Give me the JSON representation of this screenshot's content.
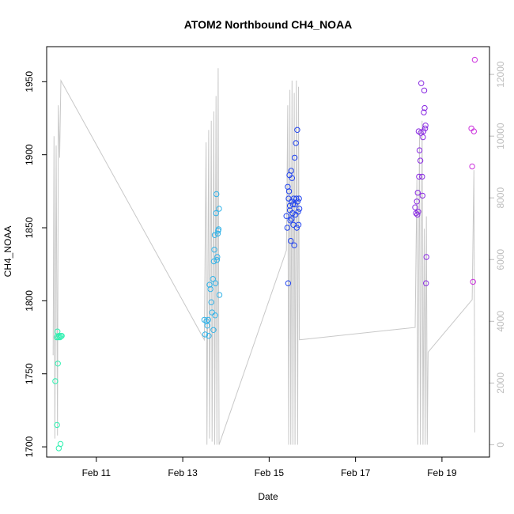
{
  "chart_data": {
    "type": "scatter",
    "title": "ATOM2 Northbound CH4_NOAA",
    "xlabel": "Date",
    "ylabel": "CH4_NOAA",
    "x_ticks": [
      "Feb 11",
      "Feb 13",
      "Feb 15",
      "Feb 17",
      "Feb 19"
    ],
    "x_tick_days": [
      11,
      13,
      15,
      17,
      19
    ],
    "xlim": [
      9.85,
      20.1
    ],
    "ylim": [
      1693,
      1974
    ],
    "y_ticks": [
      1700,
      1750,
      1800,
      1850,
      1900,
      1950
    ],
    "y2_ticks": [
      0,
      2000,
      4000,
      6000,
      8000,
      10000,
      12000
    ],
    "y2lim": [
      -400,
      12900
    ],
    "colors": {
      "altitude_line": "#c8c8c8",
      "right_axis": "#bdbdbd",
      "frame": "#000000"
    },
    "series": [
      {
        "color": "#2ef0b0",
        "points": [
          [
            10.05,
            1745
          ],
          [
            10.08,
            1775
          ],
          [
            10.1,
            1779
          ],
          [
            10.12,
            1775
          ],
          [
            10.14,
            1776
          ],
          [
            10.16,
            1775
          ],
          [
            10.18,
            1776
          ],
          [
            10.2,
            1776
          ],
          [
            10.11,
            1757
          ],
          [
            10.09,
            1715
          ],
          [
            10.13,
            1699
          ],
          [
            10.17,
            1702
          ]
        ]
      },
      {
        "color": "#33b3e8",
        "points": [
          [
            13.5,
            1787
          ],
          [
            13.52,
            1777
          ],
          [
            13.55,
            1786
          ],
          [
            13.57,
            1783
          ],
          [
            13.59,
            1787
          ],
          [
            13.6,
            1776
          ],
          [
            13.62,
            1811
          ],
          [
            13.64,
            1808
          ],
          [
            13.66,
            1799
          ],
          [
            13.68,
            1792
          ],
          [
            13.7,
            1815
          ],
          [
            13.71,
            1780
          ],
          [
            13.72,
            1827
          ],
          [
            13.73,
            1835
          ],
          [
            13.74,
            1845
          ],
          [
            13.75,
            1790
          ],
          [
            13.76,
            1812
          ],
          [
            13.77,
            1860
          ],
          [
            13.78,
            1873
          ],
          [
            13.8,
            1830
          ],
          [
            13.81,
            1846
          ],
          [
            13.82,
            1848
          ],
          [
            13.83,
            1849
          ],
          [
            13.84,
            1863
          ],
          [
            13.85,
            1804
          ],
          [
            13.79,
            1828
          ]
        ]
      },
      {
        "color": "#2244ee",
        "points": [
          [
            15.4,
            1858
          ],
          [
            15.42,
            1850
          ],
          [
            15.44,
            1812
          ],
          [
            15.45,
            1870
          ],
          [
            15.46,
            1875
          ],
          [
            15.47,
            1886
          ],
          [
            15.48,
            1862
          ],
          [
            15.49,
            1855
          ],
          [
            15.5,
            1841
          ],
          [
            15.51,
            1889
          ],
          [
            15.52,
            1868
          ],
          [
            15.53,
            1884
          ],
          [
            15.54,
            1860
          ],
          [
            15.55,
            1866
          ],
          [
            15.56,
            1852
          ],
          [
            15.57,
            1870
          ],
          [
            15.58,
            1838
          ],
          [
            15.59,
            1898
          ],
          [
            15.6,
            1866
          ],
          [
            15.61,
            1859
          ],
          [
            15.62,
            1908
          ],
          [
            15.63,
            1870
          ],
          [
            15.64,
            1850
          ],
          [
            15.65,
            1917
          ],
          [
            15.66,
            1868
          ],
          [
            15.67,
            1861
          ],
          [
            15.68,
            1852
          ],
          [
            15.69,
            1870
          ],
          [
            15.7,
            1863
          ],
          [
            15.43,
            1878
          ],
          [
            15.48,
            1865
          ],
          [
            15.52,
            1856
          ]
        ]
      },
      {
        "color": "#8a2be2",
        "points": [
          [
            18.38,
            1864
          ],
          [
            18.4,
            1860
          ],
          [
            18.42,
            1868
          ],
          [
            18.44,
            1874
          ],
          [
            18.46,
            1916
          ],
          [
            18.48,
            1903
          ],
          [
            18.5,
            1896
          ],
          [
            18.52,
            1949
          ],
          [
            18.54,
            1885
          ],
          [
            18.55,
            1872
          ],
          [
            18.56,
            1912
          ],
          [
            18.58,
            1929
          ],
          [
            18.59,
            1944
          ],
          [
            18.6,
            1932
          ],
          [
            18.61,
            1918
          ],
          [
            18.62,
            1920
          ],
          [
            18.63,
            1812
          ],
          [
            18.64,
            1830
          ],
          [
            18.47,
            1885
          ],
          [
            18.51,
            1915
          ],
          [
            18.43,
            1859
          ],
          [
            18.45,
            1861
          ],
          [
            18.57,
            1916
          ]
        ]
      },
      {
        "color": "#cc33dd",
        "points": [
          [
            19.68,
            1918
          ],
          [
            19.7,
            1892
          ],
          [
            19.72,
            1813
          ],
          [
            19.74,
            1916
          ],
          [
            19.76,
            1965
          ]
        ]
      }
    ],
    "altitude_line": [
      [
        10.0,
        2900
      ],
      [
        10.02,
        10000
      ],
      [
        10.04,
        200
      ],
      [
        10.07,
        9700
      ],
      [
        10.1,
        300
      ],
      [
        10.12,
        11000
      ],
      [
        10.15,
        9300
      ],
      [
        10.18,
        11800
      ],
      [
        13.5,
        3400
      ],
      [
        13.54,
        9800
      ],
      [
        13.56,
        0
      ],
      [
        13.6,
        10200
      ],
      [
        13.62,
        200
      ],
      [
        13.66,
        10500
      ],
      [
        13.68,
        100
      ],
      [
        13.72,
        10800
      ],
      [
        13.74,
        0
      ],
      [
        13.77,
        11300
      ],
      [
        13.79,
        0
      ],
      [
        13.82,
        12200
      ],
      [
        13.84,
        0
      ],
      [
        15.4,
        6300
      ],
      [
        15.43,
        11000
      ],
      [
        15.45,
        0
      ],
      [
        15.48,
        11500
      ],
      [
        15.5,
        0
      ],
      [
        15.53,
        11800
      ],
      [
        15.55,
        0
      ],
      [
        15.58,
        11400
      ],
      [
        15.6,
        0
      ],
      [
        15.63,
        11800
      ],
      [
        15.66,
        0
      ],
      [
        15.68,
        11600
      ],
      [
        15.7,
        3400
      ],
      [
        18.38,
        3800
      ],
      [
        18.42,
        8600
      ],
      [
        18.44,
        0
      ],
      [
        18.48,
        10200
      ],
      [
        18.5,
        0
      ],
      [
        18.54,
        10500
      ],
      [
        18.56,
        0
      ],
      [
        18.59,
        7000
      ],
      [
        18.61,
        0
      ],
      [
        18.64,
        7400
      ],
      [
        18.66,
        0
      ],
      [
        18.68,
        3000
      ],
      [
        19.7,
        4700
      ],
      [
        19.74,
        8900
      ],
      [
        19.76,
        400
      ]
    ]
  }
}
